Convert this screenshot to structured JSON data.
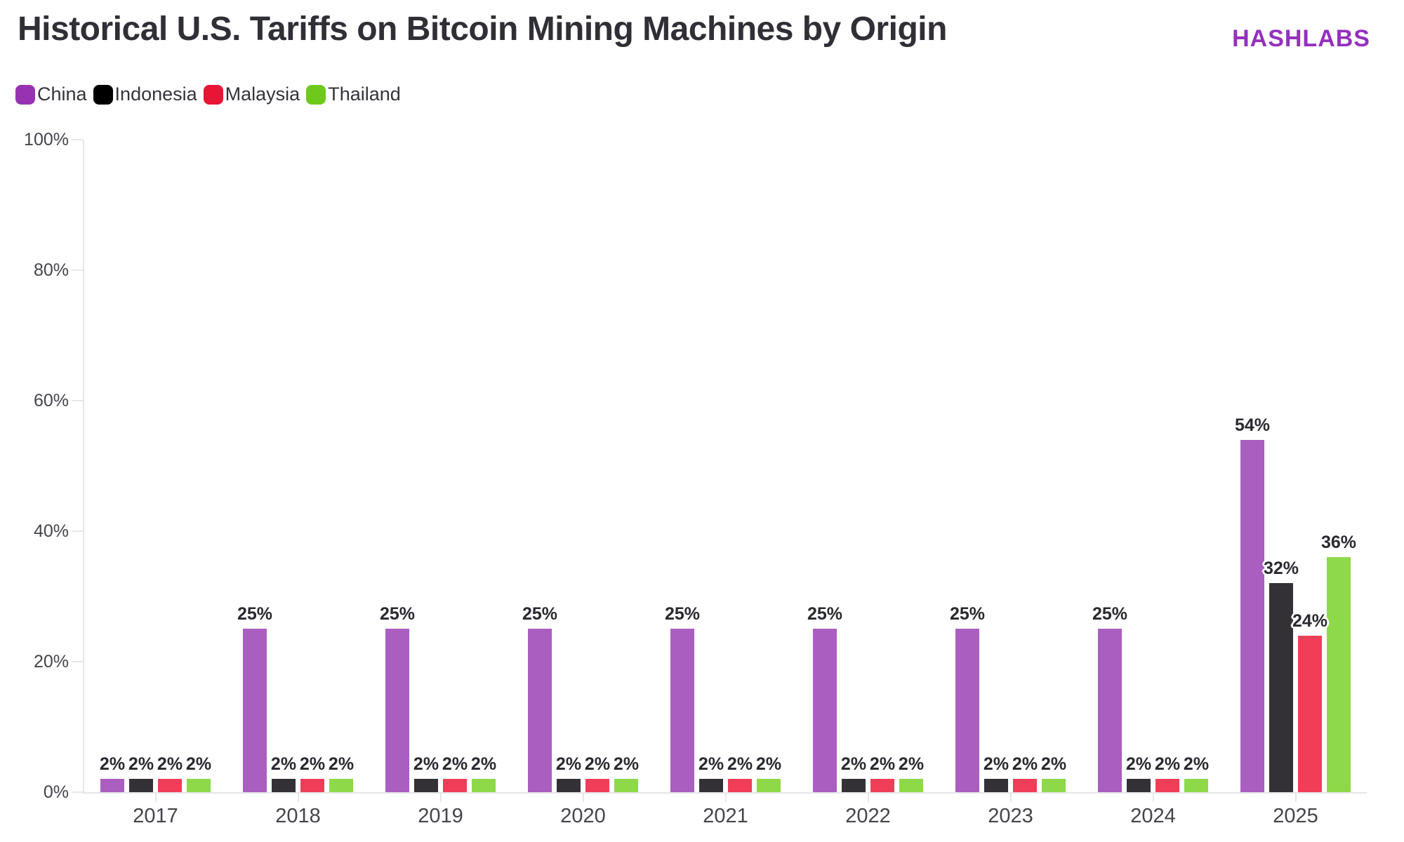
{
  "header": {
    "title": "Historical U.S. Tariffs on Bitcoin Mining Machines by Origin",
    "brand": "HASHLABS"
  },
  "colors": {
    "brand": "#9430be",
    "axis": "#e7e7ea",
    "title_text": "#312e36",
    "axis_text": "#46434b",
    "value_label_text": "#2b2830"
  },
  "chart_data": {
    "type": "bar",
    "title": "Historical U.S. Tariffs on Bitcoin Mining Machines by Origin",
    "categories": [
      "2017",
      "2018",
      "2019",
      "2020",
      "2021",
      "2022",
      "2023",
      "2024",
      "2025"
    ],
    "series": [
      {
        "name": "China",
        "color": "#9733b3",
        "bar_color": "#aa5ec0",
        "values": [
          2,
          25,
          25,
          25,
          25,
          25,
          25,
          25,
          54
        ]
      },
      {
        "name": "Indonesia",
        "color": "#000000",
        "bar_color": "#333036",
        "values": [
          2,
          2,
          2,
          2,
          2,
          2,
          2,
          2,
          32
        ]
      },
      {
        "name": "Malaysia",
        "color": "#e81537",
        "bar_color": "#f03e58",
        "values": [
          2,
          2,
          2,
          2,
          2,
          2,
          2,
          2,
          24
        ]
      },
      {
        "name": "Thailand",
        "color": "#6fc91c",
        "bar_color": "#8dd94a",
        "values": [
          2,
          2,
          2,
          2,
          2,
          2,
          2,
          2,
          36
        ]
      }
    ],
    "y_ticks": [
      "100%",
      "80%",
      "60%",
      "40%",
      "20%",
      "0%"
    ],
    "ylim": [
      0,
      100
    ],
    "value_label_suffix": "%",
    "legend_position": "top-left",
    "grid": "none",
    "xlabel": "",
    "ylabel": ""
  }
}
